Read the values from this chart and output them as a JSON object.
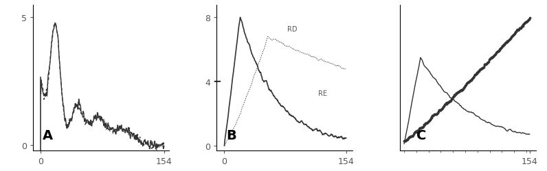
{
  "panel_A": {
    "label": "A",
    "ytick_top": "5",
    "ytick_bottom": "0",
    "xtick_left": "0",
    "xtick_right": "154"
  },
  "panel_B": {
    "label": "B",
    "ytick_top": "8",
    "ytick_mid": "4",
    "ytick_bottom": "0",
    "xtick_left": "0",
    "xtick_right": "154",
    "label_RD": "RD",
    "label_RE": "RE"
  },
  "panel_C": {
    "label": "C",
    "xtick_right": "154"
  },
  "bg_color": "#ffffff",
  "line_color": "#333333",
  "font_size_label": 14,
  "font_size_tick": 9
}
